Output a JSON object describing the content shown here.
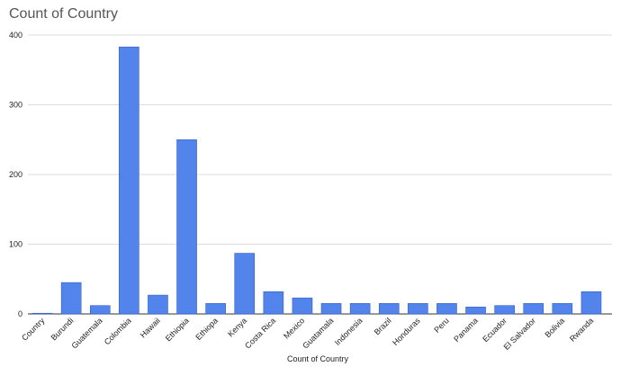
{
  "chart_data": {
    "type": "bar",
    "title": "Count of Country",
    "x_label": "Count of Country",
    "categories": [
      "Country",
      "Burundi",
      "Guatemala",
      "Colombia",
      "Hawaii",
      "Ethiopia",
      "Ethiopa",
      "Kenya",
      "Costa Rica",
      "Mexico",
      "Guatamala",
      "Indonesia",
      "Brazil",
      "Honduras",
      "Peru",
      "Panama",
      "Ecuador",
      "El Salvador",
      "Bolivia",
      "Rwanda"
    ],
    "values": [
      1,
      45,
      12,
      383,
      27,
      250,
      15,
      87,
      32,
      23,
      15,
      15,
      15,
      15,
      15,
      10,
      12,
      15,
      15,
      32
    ],
    "color": "#5384ec",
    "ylim": [
      0,
      400
    ],
    "yticks": [
      0,
      100,
      200,
      300,
      400
    ],
    "grid": true
  }
}
